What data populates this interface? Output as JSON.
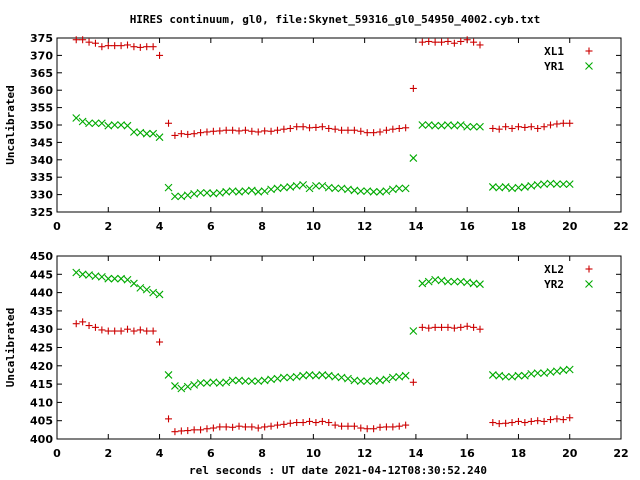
{
  "title": "HIRES continuum, gl0, file:Skynet_59316_gl0_54950_4002.cyb.txt",
  "xlabel": "rel seconds : UT date 2021-04-12T08:30:52.240",
  "colors": {
    "red": "#cc0000",
    "green": "#00aa00",
    "axis": "#000000"
  },
  "chart_data": [
    {
      "type": "scatter",
      "title": "HIRES continuum, gl0, file:Skynet_59316_gl0_54950_4002.cyb.txt",
      "xlabel": "",
      "ylabel": "Uncalibrated",
      "xlim": [
        0,
        22
      ],
      "ylim": [
        325,
        375
      ],
      "xticks": [
        "0",
        "2",
        "4",
        "6",
        "8",
        "10",
        "12",
        "14",
        "16",
        "18",
        "20",
        "22"
      ],
      "yticks": [
        "325",
        "330",
        "335",
        "340",
        "345",
        "350",
        "355",
        "360",
        "365",
        "370",
        "375"
      ],
      "legend_position": "top-right",
      "series": [
        {
          "name": "XL1",
          "marker": "plus",
          "color": "#cc0000",
          "x": [
            0.75,
            1.0,
            1.25,
            1.5,
            1.75,
            2.0,
            2.25,
            2.5,
            2.75,
            3.0,
            3.25,
            3.5,
            3.75,
            4.0,
            4.35,
            4.6,
            4.85,
            5.1,
            5.35,
            5.6,
            5.85,
            6.1,
            6.35,
            6.6,
            6.85,
            7.1,
            7.35,
            7.6,
            7.85,
            8.1,
            8.35,
            8.6,
            8.85,
            9.1,
            9.35,
            9.6,
            9.85,
            10.1,
            10.35,
            10.6,
            10.85,
            11.1,
            11.35,
            11.6,
            11.85,
            12.1,
            12.35,
            12.6,
            12.85,
            13.1,
            13.35,
            13.6,
            13.9,
            14.25,
            14.5,
            14.75,
            15.0,
            15.25,
            15.5,
            15.75,
            16.0,
            16.25,
            16.5,
            17.0,
            17.25,
            17.5,
            17.75,
            18.0,
            18.25,
            18.5,
            18.75,
            19.0,
            19.25,
            19.5,
            19.75,
            20.0
          ],
          "y": [
            374.5,
            374.5,
            373.8,
            373.5,
            372.5,
            372.8,
            372.8,
            372.8,
            373.0,
            372.5,
            372.3,
            372.5,
            372.5,
            370.0,
            350.5,
            347.0,
            347.5,
            347.3,
            347.5,
            347.8,
            348.0,
            348.2,
            348.3,
            348.5,
            348.5,
            348.3,
            348.5,
            348.2,
            348.0,
            348.3,
            348.2,
            348.5,
            348.8,
            349.0,
            349.5,
            349.5,
            349.2,
            349.3,
            349.5,
            349.0,
            348.8,
            348.5,
            348.5,
            348.5,
            348.2,
            347.8,
            347.8,
            348.0,
            348.5,
            348.8,
            349.0,
            349.2,
            360.5,
            373.8,
            374.0,
            373.8,
            373.8,
            374.0,
            373.5,
            374.0,
            374.5,
            373.8,
            373.0,
            349.0,
            348.8,
            349.5,
            349.0,
            349.5,
            349.3,
            349.5,
            349.0,
            349.5,
            350.0,
            350.3,
            350.5,
            350.5
          ]
        },
        {
          "name": "YR1",
          "marker": "cross",
          "color": "#00aa00",
          "x": [
            0.75,
            1.0,
            1.25,
            1.5,
            1.75,
            2.0,
            2.25,
            2.5,
            2.75,
            3.0,
            3.25,
            3.5,
            3.75,
            4.0,
            4.35,
            4.6,
            4.85,
            5.1,
            5.35,
            5.6,
            5.85,
            6.1,
            6.35,
            6.6,
            6.85,
            7.1,
            7.35,
            7.6,
            7.85,
            8.1,
            8.35,
            8.6,
            8.85,
            9.1,
            9.35,
            9.6,
            9.85,
            10.1,
            10.35,
            10.6,
            10.85,
            11.1,
            11.35,
            11.6,
            11.85,
            12.1,
            12.35,
            12.6,
            12.85,
            13.1,
            13.35,
            13.6,
            13.9,
            14.25,
            14.5,
            14.75,
            15.0,
            15.25,
            15.5,
            15.75,
            16.0,
            16.25,
            16.5,
            17.0,
            17.25,
            17.5,
            17.75,
            18.0,
            18.25,
            18.5,
            18.75,
            19.0,
            19.25,
            19.5,
            19.75,
            20.0
          ],
          "y": [
            352.0,
            351.0,
            350.5,
            350.5,
            350.5,
            349.8,
            350.0,
            350.0,
            349.8,
            348.0,
            347.8,
            347.5,
            347.5,
            346.5,
            332.0,
            329.5,
            329.5,
            329.8,
            330.2,
            330.5,
            330.5,
            330.3,
            330.5,
            330.8,
            331.0,
            330.8,
            331.0,
            331.2,
            330.8,
            331.0,
            331.5,
            331.8,
            332.0,
            332.2,
            332.5,
            332.8,
            331.8,
            332.5,
            332.5,
            332.0,
            331.8,
            331.8,
            331.5,
            331.2,
            331.0,
            331.0,
            330.8,
            330.8,
            331.0,
            331.5,
            331.8,
            331.8,
            340.5,
            350.0,
            350.0,
            349.8,
            349.8,
            350.0,
            349.8,
            350.0,
            349.5,
            349.5,
            349.5,
            332.2,
            332.0,
            332.2,
            331.8,
            332.0,
            332.2,
            332.5,
            332.8,
            333.0,
            333.2,
            333.0,
            333.0,
            333.0
          ]
        }
      ]
    },
    {
      "type": "scatter",
      "title": "",
      "xlabel": "rel seconds : UT date 2021-04-12T08:30:52.240",
      "ylabel": "Uncalibrated",
      "xlim": [
        0,
        22
      ],
      "ylim": [
        400,
        450
      ],
      "xticks": [
        "0",
        "2",
        "4",
        "6",
        "8",
        "10",
        "12",
        "14",
        "16",
        "18",
        "20",
        "22"
      ],
      "yticks": [
        "400",
        "405",
        "410",
        "415",
        "420",
        "425",
        "430",
        "435",
        "440",
        "445",
        "450"
      ],
      "legend_position": "top-right",
      "series": [
        {
          "name": "XL2",
          "marker": "plus",
          "color": "#cc0000",
          "x": [
            0.75,
            1.0,
            1.25,
            1.5,
            1.75,
            2.0,
            2.25,
            2.5,
            2.75,
            3.0,
            3.25,
            3.5,
            3.75,
            4.0,
            4.35,
            4.6,
            4.85,
            5.1,
            5.35,
            5.6,
            5.85,
            6.1,
            6.35,
            6.6,
            6.85,
            7.1,
            7.35,
            7.6,
            7.85,
            8.1,
            8.35,
            8.6,
            8.85,
            9.1,
            9.35,
            9.6,
            9.85,
            10.1,
            10.35,
            10.6,
            10.85,
            11.1,
            11.35,
            11.6,
            11.85,
            12.1,
            12.35,
            12.6,
            12.85,
            13.1,
            13.35,
            13.6,
            13.9,
            14.25,
            14.5,
            14.75,
            15.0,
            15.25,
            15.5,
            15.75,
            16.0,
            16.25,
            16.5,
            17.0,
            17.25,
            17.5,
            17.75,
            18.0,
            18.25,
            18.5,
            18.75,
            19.0,
            19.25,
            19.5,
            19.75,
            20.0
          ],
          "y": [
            431.5,
            432.0,
            431.0,
            430.5,
            429.8,
            429.5,
            429.5,
            429.5,
            430.0,
            429.5,
            429.8,
            429.5,
            429.5,
            426.5,
            405.5,
            402.0,
            402.2,
            402.3,
            402.5,
            402.5,
            402.8,
            403.0,
            403.3,
            403.3,
            403.2,
            403.5,
            403.3,
            403.3,
            403.0,
            403.3,
            403.5,
            403.8,
            404.0,
            404.3,
            404.5,
            404.5,
            404.8,
            404.5,
            404.8,
            404.5,
            403.8,
            403.5,
            403.5,
            403.5,
            403.0,
            402.8,
            402.8,
            403.2,
            403.3,
            403.3,
            403.5,
            403.8,
            415.5,
            430.5,
            430.3,
            430.5,
            430.5,
            430.5,
            430.3,
            430.5,
            430.8,
            430.5,
            430.0,
            404.5,
            404.2,
            404.3,
            404.5,
            404.8,
            404.5,
            404.8,
            405.0,
            404.8,
            405.3,
            405.5,
            405.3,
            405.8
          ]
        },
        {
          "name": "YR2",
          "marker": "cross",
          "color": "#00aa00",
          "x": [
            0.75,
            1.0,
            1.25,
            1.5,
            1.75,
            2.0,
            2.25,
            2.5,
            2.75,
            3.0,
            3.25,
            3.5,
            3.75,
            4.0,
            4.35,
            4.6,
            4.85,
            5.1,
            5.35,
            5.6,
            5.85,
            6.1,
            6.35,
            6.6,
            6.85,
            7.1,
            7.35,
            7.6,
            7.85,
            8.1,
            8.35,
            8.6,
            8.85,
            9.1,
            9.35,
            9.6,
            9.85,
            10.1,
            10.35,
            10.6,
            10.85,
            11.1,
            11.35,
            11.6,
            11.85,
            12.1,
            12.35,
            12.6,
            12.85,
            13.1,
            13.35,
            13.6,
            13.9,
            14.25,
            14.5,
            14.75,
            15.0,
            15.25,
            15.5,
            15.75,
            16.0,
            16.25,
            16.5,
            17.0,
            17.25,
            17.5,
            17.75,
            18.0,
            18.25,
            18.5,
            18.75,
            19.0,
            19.25,
            19.5,
            19.75,
            20.0
          ],
          "y": [
            445.5,
            445.0,
            444.8,
            444.5,
            444.3,
            443.8,
            443.8,
            443.8,
            443.5,
            442.5,
            441.3,
            440.8,
            440.0,
            439.5,
            417.5,
            414.5,
            413.8,
            414.3,
            414.8,
            415.3,
            415.3,
            415.5,
            415.3,
            415.5,
            416.0,
            416.0,
            415.8,
            415.8,
            415.8,
            416.0,
            416.3,
            416.5,
            416.8,
            416.8,
            417.0,
            417.3,
            417.5,
            417.3,
            417.5,
            417.3,
            417.0,
            416.8,
            416.5,
            416.0,
            415.8,
            415.8,
            415.8,
            416.0,
            416.3,
            416.8,
            417.0,
            417.3,
            429.5,
            442.5,
            443.0,
            443.5,
            443.3,
            443.0,
            443.0,
            443.0,
            442.8,
            442.5,
            442.3,
            417.5,
            417.3,
            417.0,
            417.0,
            417.3,
            417.3,
            417.8,
            418.0,
            418.0,
            418.3,
            418.5,
            418.8,
            419.0
          ]
        }
      ]
    }
  ]
}
